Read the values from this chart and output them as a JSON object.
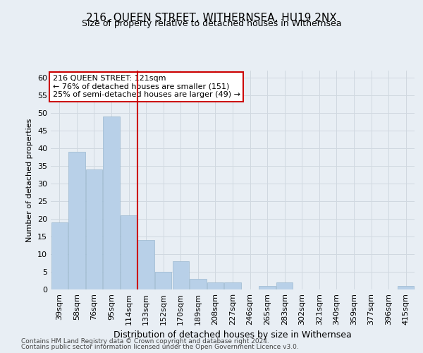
{
  "title": "216, QUEEN STREET, WITHERNSEA, HU19 2NX",
  "subtitle": "Size of property relative to detached houses in Withernsea",
  "xlabel": "Distribution of detached houses by size in Withernsea",
  "ylabel": "Number of detached properties",
  "categories": [
    "39sqm",
    "58sqm",
    "76sqm",
    "95sqm",
    "114sqm",
    "133sqm",
    "152sqm",
    "170sqm",
    "189sqm",
    "208sqm",
    "227sqm",
    "246sqm",
    "265sqm",
    "283sqm",
    "302sqm",
    "321sqm",
    "340sqm",
    "359sqm",
    "377sqm",
    "396sqm",
    "415sqm"
  ],
  "values": [
    19,
    39,
    34,
    49,
    21,
    14,
    5,
    8,
    3,
    2,
    2,
    0,
    1,
    2,
    0,
    0,
    0,
    0,
    0,
    0,
    1
  ],
  "bar_color": "#b8d0e8",
  "bar_edge_color": "#9ab8d0",
  "ylim": [
    0,
    62
  ],
  "yticks": [
    0,
    5,
    10,
    15,
    20,
    25,
    30,
    35,
    40,
    45,
    50,
    55,
    60
  ],
  "annotation_title": "216 QUEEN STREET: 121sqm",
  "annotation_line1": "← 76% of detached houses are smaller (151)",
  "annotation_line2": "25% of semi-detached houses are larger (49) →",
  "annotation_box_color": "#ffffff",
  "annotation_box_edge": "#cc0000",
  "red_line_color": "#cc0000",
  "grid_color": "#d0d8e0",
  "footer1": "Contains HM Land Registry data © Crown copyright and database right 2024.",
  "footer2": "Contains public sector information licensed under the Open Government Licence v3.0.",
  "bg_color": "#e8eef4",
  "plot_bg_color": "#e8eef4",
  "title_fontsize": 11,
  "subtitle_fontsize": 9,
  "xlabel_fontsize": 9,
  "ylabel_fontsize": 8,
  "tick_fontsize": 8,
  "annot_fontsize": 8,
  "footer_fontsize": 6.5
}
